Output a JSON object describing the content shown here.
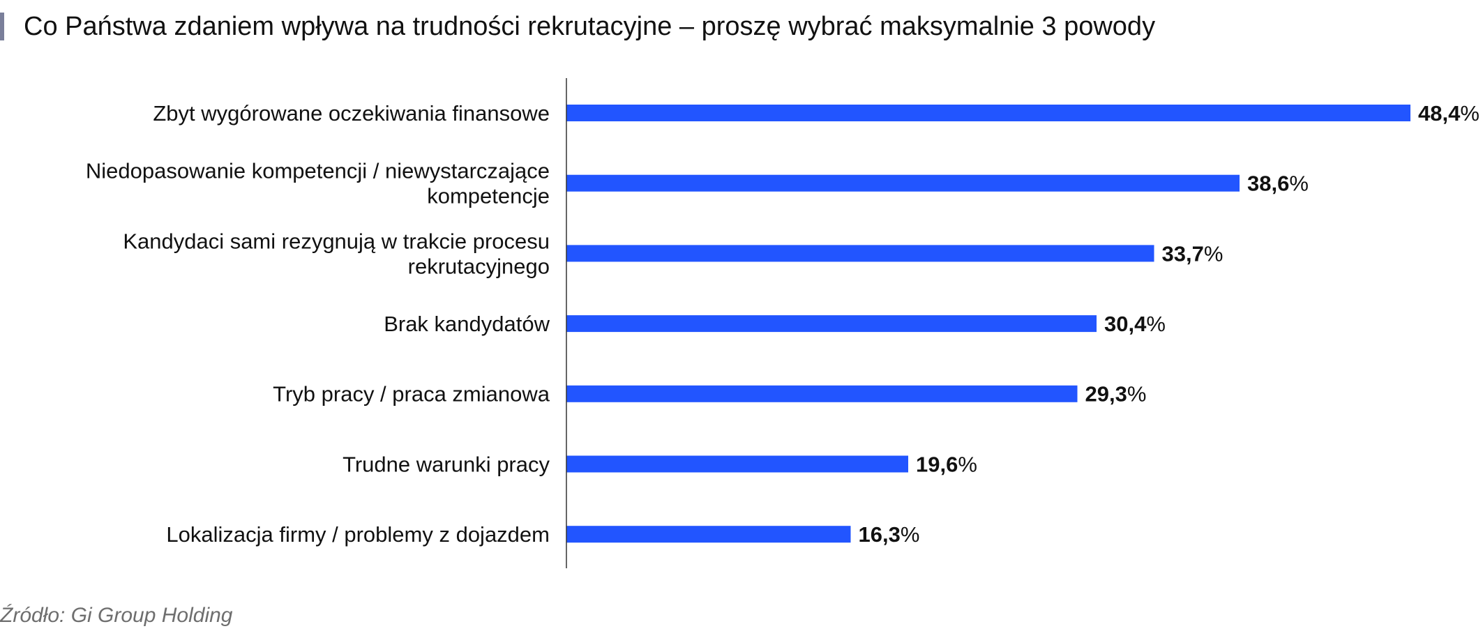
{
  "title": "Co Państwa zdaniem wpływa na trudności rekrutacyjne – proszę wybrać maksymalnie 3 powody",
  "source": "Źródło: Gi Group Holding",
  "colors": {
    "bar": "#2255ff",
    "axis": "#333333",
    "title_accent": "#7a7f9a"
  },
  "chart_data": {
    "type": "bar",
    "orientation": "horizontal",
    "title": "Co Państwa zdaniem wpływa na trudności rekrutacyjne – proszę wybrać maksymalnie 3 powody",
    "categories": [
      [
        "Zbyt wygórowane oczekiwania finansowe"
      ],
      [
        "Niedopasowanie kompetencji / niewystarczające",
        "kompetencje"
      ],
      [
        "Kandydaci sami rezygnują w trakcie procesu",
        "rekrutacyjnego"
      ],
      [
        "Brak kandydatów"
      ],
      [
        "Tryb pracy / praca zmianowa"
      ],
      [
        "Trudne warunki pracy"
      ],
      [
        "Lokalizacja firmy / problemy z dojazdem"
      ]
    ],
    "values": [
      48.4,
      38.6,
      33.7,
      30.4,
      29.3,
      19.6,
      16.3
    ],
    "value_labels": [
      "48,4",
      "38,6",
      "33,7",
      "30,4",
      "29,3",
      "19,6",
      "16,3"
    ],
    "unit": "%",
    "xlim": [
      0,
      48.4
    ],
    "grid": false,
    "legend": "none"
  }
}
